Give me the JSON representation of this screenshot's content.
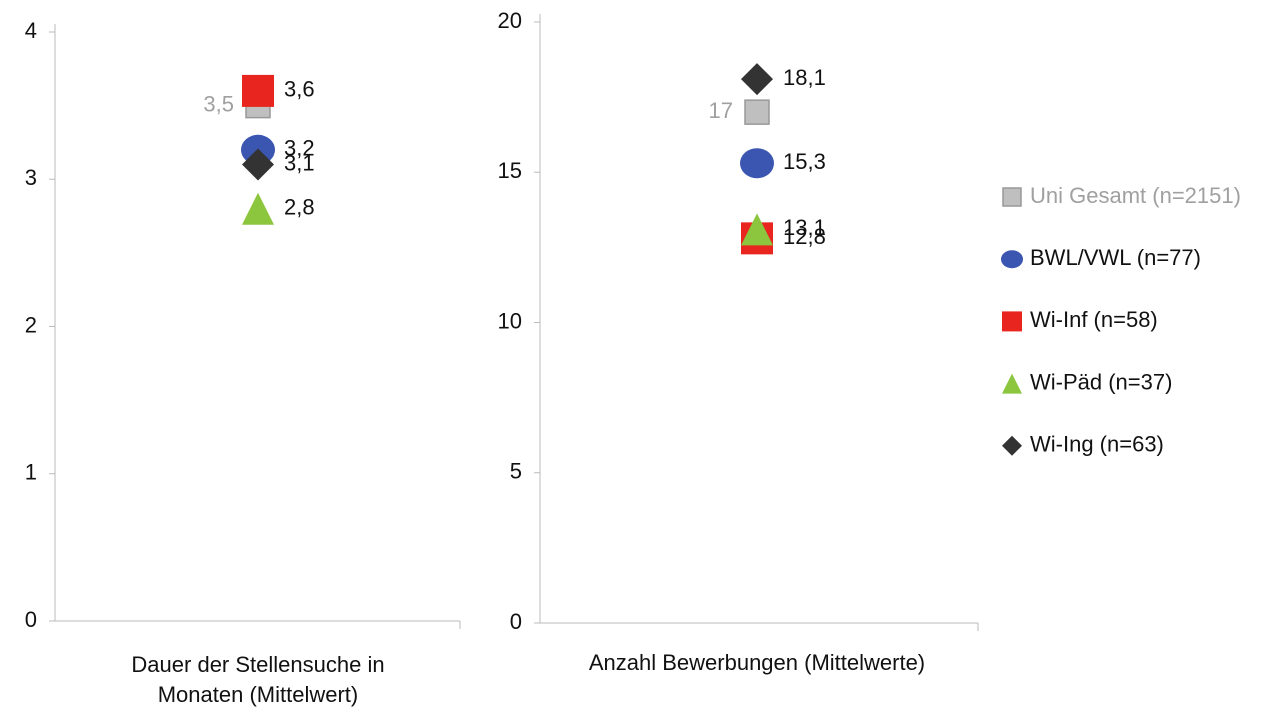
{
  "chart_data": {
    "type": "dot",
    "categories": [
      "Dauer der Stellensuche in Monaten (Mittelwert)",
      "Anzahl Bewerbungen (Mittelwerte)"
    ],
    "series": [
      {
        "name": "Uni Gesamt (n=2151)",
        "color": "#bfbfbf",
        "marker": "square",
        "label_position": "left",
        "values": [
          3.5,
          17
        ],
        "value_labels": [
          "3,5",
          "17"
        ]
      },
      {
        "name": "BWL/VWL (n=77)",
        "color": "#3a56b0",
        "marker": "circle",
        "label_position": "right",
        "values": [
          3.2,
          15.3
        ],
        "value_labels": [
          "3,2",
          "15,3"
        ]
      },
      {
        "name": "Wi-Inf (n=58)",
        "color": "#e8251f",
        "marker": "square",
        "label_position": "right",
        "values": [
          3.6,
          12.8
        ],
        "value_labels": [
          "3,6",
          "12,8"
        ]
      },
      {
        "name": "Wi-Päd (n=37)",
        "color": "#8cc63e",
        "marker": "triangle",
        "label_position": "right",
        "values": [
          2.8,
          13.1
        ],
        "value_labels": [
          "2,8",
          "13,1"
        ]
      },
      {
        "name": "Wi-Ing (n=63)",
        "color": "#333333",
        "marker": "diamond",
        "label_position": "right",
        "values": [
          3.1,
          18.1
        ],
        "value_labels": [
          "3,1",
          "18,1"
        ]
      }
    ],
    "ylim": [
      0,
      4
    ],
    "yticks": [
      0,
      1,
      2,
      3,
      4
    ],
    "y2lim": [
      0,
      20
    ],
    "y2ticks": [
      0,
      5,
      10,
      15,
      20
    ],
    "legend": "right"
  }
}
